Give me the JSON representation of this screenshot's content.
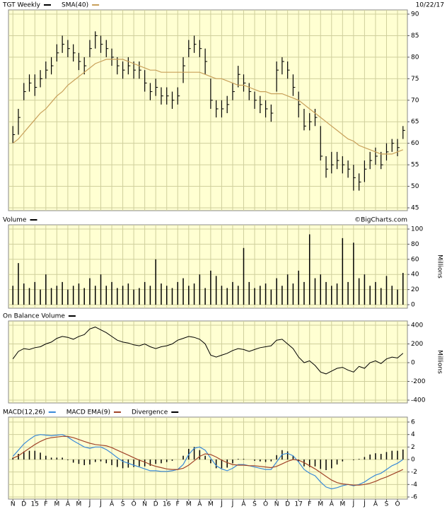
{
  "chart_data": [
    {
      "type": "ohlc",
      "title": "TGT Weekly",
      "color": "#000000",
      "date": "10/22/17",
      "x": [
        0,
        0.5,
        1,
        1.5,
        2,
        2.5,
        3,
        3.5,
        4,
        4.5,
        5,
        5.5,
        6,
        6.5,
        7,
        7.5,
        8,
        8.5,
        9,
        9.5,
        10,
        10.5,
        11,
        11.5,
        12,
        12.5,
        13,
        13.5,
        14,
        14.5,
        15,
        15.5,
        16,
        16.5,
        17,
        17.5,
        18,
        18.5,
        19,
        19.5,
        20,
        20.5,
        21,
        21.5,
        22,
        22.5,
        23,
        23.5,
        24,
        24.5,
        25,
        25.5,
        26,
        26.5,
        27,
        27.5,
        28,
        28.5,
        29,
        29.5,
        30,
        30.5,
        31,
        31.5,
        32,
        32.5,
        33,
        33.5,
        34,
        34.5,
        35,
        35.5
      ],
      "xlim": [
        -0.4,
        35.9
      ],
      "high": [
        64,
        68,
        74,
        76,
        76,
        77,
        79,
        80,
        83,
        85,
        84,
        83,
        81,
        80,
        84,
        86,
        85,
        84,
        82,
        80,
        79,
        80,
        79,
        79,
        77,
        74,
        75,
        73,
        73,
        72,
        73,
        80,
        84,
        85,
        84,
        82,
        75,
        70,
        70,
        71,
        74,
        78,
        76,
        74,
        72,
        71,
        70,
        69,
        79,
        80,
        79,
        76,
        72,
        68,
        67,
        68,
        64,
        57,
        58,
        58,
        57,
        56,
        55,
        53,
        56,
        58,
        59,
        58,
        60,
        61,
        61,
        64
      ],
      "low": [
        60,
        62,
        70,
        72,
        71,
        73,
        75,
        76,
        79,
        81,
        80,
        79,
        77,
        76,
        80,
        82,
        81,
        80,
        78,
        76,
        75,
        76,
        75,
        75,
        72,
        70,
        71,
        69,
        69,
        68,
        69,
        74,
        80,
        81,
        80,
        76,
        68,
        66,
        66,
        67,
        70,
        73,
        72,
        70,
        68,
        67,
        66,
        65,
        72,
        76,
        75,
        71,
        66,
        63,
        63,
        64,
        56,
        52,
        53,
        54,
        53,
        52,
        49,
        49,
        51,
        54,
        55,
        54,
        56,
        58,
        57,
        61
      ],
      "close": [
        62,
        66,
        72,
        74,
        73,
        75,
        77,
        78,
        81,
        83,
        82,
        81,
        79,
        78,
        82,
        85,
        83,
        82,
        80,
        78,
        77,
        78,
        77,
        77,
        74,
        72,
        73,
        71,
        71,
        70,
        71,
        78,
        82,
        83,
        82,
        79,
        70,
        68,
        68,
        69,
        72,
        76,
        74,
        72,
        70,
        69,
        68,
        67,
        77,
        79,
        77,
        73,
        69,
        64,
        65,
        66,
        57,
        54,
        55,
        56,
        55,
        54,
        52,
        51,
        54,
        56,
        57,
        55,
        58,
        60,
        59,
        63
      ],
      "series": [
        {
          "name": "SMA(40)",
          "color": "#c8a05a",
          "values": [
            60,
            61,
            62.5,
            64,
            65.5,
            67,
            68,
            69.5,
            71,
            72,
            73.5,
            74.5,
            75.5,
            76.5,
            77.5,
            78.5,
            79,
            79.5,
            79.5,
            79.5,
            79.5,
            79,
            78.5,
            78,
            77.5,
            77,
            77,
            76.5,
            76.5,
            76.5,
            76.5,
            76.5,
            76.5,
            76.5,
            76.5,
            76,
            75.5,
            75,
            75,
            74.5,
            74,
            73.5,
            73.5,
            73,
            72.5,
            72,
            72,
            71.5,
            71.5,
            71.5,
            71,
            70.5,
            70,
            69,
            68,
            67,
            66,
            65,
            64,
            63,
            62,
            61,
            60.5,
            59.5,
            59,
            58.5,
            58,
            57.5,
            57.5,
            57.5,
            58,
            58.5
          ]
        }
      ],
      "ylim": [
        45,
        90
      ],
      "yticks": [
        45,
        50,
        55,
        60,
        65,
        70,
        75,
        80,
        85,
        90
      ],
      "grid": true
    },
    {
      "type": "bar",
      "title": "Volume",
      "color": "#000000",
      "credit": "©BigCharts.com",
      "y_label": "Millions",
      "values": [
        25,
        55,
        28,
        22,
        30,
        20,
        40,
        22,
        25,
        30,
        20,
        25,
        28,
        22,
        35,
        25,
        40,
        25,
        30,
        22,
        25,
        28,
        20,
        22,
        30,
        25,
        60,
        28,
        25,
        22,
        30,
        35,
        25,
        28,
        40,
        22,
        45,
        38,
        25,
        22,
        30,
        25,
        75,
        30,
        22,
        25,
        28,
        20,
        35,
        25,
        40,
        28,
        45,
        30,
        93,
        35,
        40,
        30,
        25,
        28,
        88,
        30,
        82,
        35,
        40,
        25,
        30,
        22,
        38,
        25,
        20,
        42
      ],
      "ylim": [
        0,
        100
      ],
      "yticks": [
        0,
        20,
        40,
        60,
        80,
        100
      ],
      "grid": true
    },
    {
      "type": "line",
      "title": "On Balance Volume",
      "color": "#000000",
      "y_label": "Millions",
      "values": [
        40,
        120,
        150,
        140,
        160,
        170,
        200,
        220,
        260,
        280,
        270,
        250,
        280,
        300,
        360,
        380,
        350,
        320,
        280,
        240,
        220,
        210,
        190,
        180,
        200,
        170,
        150,
        170,
        180,
        200,
        240,
        260,
        280,
        270,
        250,
        200,
        80,
        60,
        80,
        100,
        130,
        150,
        140,
        120,
        140,
        160,
        170,
        180,
        240,
        250,
        200,
        150,
        60,
        0,
        20,
        -30,
        -100,
        -120,
        -90,
        -60,
        -50,
        -80,
        -100,
        -40,
        -60,
        0,
        20,
        -10,
        40,
        60,
        50,
        100
      ],
      "ylim": [
        -400,
        400
      ],
      "yticks": [
        -400,
        -200,
        0,
        200,
        400
      ],
      "grid": true
    },
    {
      "type": "macd",
      "series": [
        {
          "name": "MACD(12,26)",
          "color": "#3a8ad8",
          "style": "line",
          "values": [
            0.5,
            1.5,
            2.5,
            3.2,
            3.8,
            4,
            3.9,
            3.8,
            3.9,
            4,
            3.6,
            3,
            2.5,
            2,
            1.8,
            2,
            2,
            1.6,
            1,
            0.3,
            -0.3,
            -0.6,
            -0.9,
            -1.2,
            -1.5,
            -1.8,
            -1.8,
            -1.9,
            -1.9,
            -1.8,
            -1.6,
            -0.8,
            0.8,
            1.8,
            2,
            1.5,
            0.2,
            -1,
            -1.5,
            -1.8,
            -1.4,
            -0.8,
            -0.8,
            -1,
            -1.2,
            -1.4,
            -1.6,
            -1.6,
            -0.4,
            0.8,
            1,
            0.6,
            -0.4,
            -1.6,
            -2.2,
            -2.6,
            -3.6,
            -4.4,
            -4.7,
            -4.5,
            -4.2,
            -4,
            -4.2,
            -4,
            -3.6,
            -3,
            -2.5,
            -2.2,
            -1.6,
            -1,
            -0.6,
            0
          ]
        },
        {
          "name": "MACD EMA(9)",
          "color": "#a0442a",
          "style": "line",
          "values": [
            0.2,
            0.6,
            1.2,
            1.8,
            2.4,
            2.9,
            3.3,
            3.5,
            3.6,
            3.7,
            3.7,
            3.5,
            3.2,
            2.9,
            2.6,
            2.4,
            2.3,
            2.2,
            1.9,
            1.5,
            1.1,
            0.7,
            0.3,
            -0.1,
            -0.4,
            -0.8,
            -1.1,
            -1.3,
            -1.5,
            -1.6,
            -1.6,
            -1.4,
            -0.9,
            -0.2,
            0.5,
            0.9,
            0.8,
            0.4,
            -0.1,
            -0.5,
            -0.8,
            -0.9,
            -0.9,
            -1,
            -1,
            -1.1,
            -1.2,
            -1.3,
            -1.1,
            -0.7,
            -0.3,
            0,
            -0.1,
            -0.5,
            -1,
            -1.5,
            -2.1,
            -2.7,
            -3.3,
            -3.7,
            -3.9,
            -4,
            -4.1,
            -4.1,
            -4,
            -3.8,
            -3.5,
            -3.1,
            -2.8,
            -2.4,
            -2,
            -1.6
          ]
        },
        {
          "name": "Divergence",
          "color": "#000000",
          "style": "bar",
          "values": [
            0.3,
            0.9,
            1.3,
            1.4,
            1.4,
            1.1,
            0.6,
            0.3,
            0.3,
            0.3,
            -0.1,
            -0.5,
            -0.7,
            -0.9,
            -0.8,
            -0.4,
            -0.3,
            -0.6,
            -0.9,
            -1.2,
            -1.4,
            -1.3,
            -1.2,
            -1.1,
            -1.1,
            -1,
            -0.7,
            -0.6,
            -0.4,
            -0.2,
            0,
            0.6,
            1.7,
            2,
            1.5,
            0.6,
            -0.6,
            -1.4,
            -1.4,
            -1.3,
            -0.6,
            0.1,
            0.1,
            0,
            -0.2,
            -0.3,
            -0.4,
            -0.3,
            0.7,
            1.5,
            1.3,
            0.6,
            -0.3,
            -1.1,
            -1.2,
            -1.1,
            -1.5,
            -1.7,
            -1.4,
            -0.8,
            -0.3,
            0,
            -0.1,
            0.1,
            0.4,
            0.8,
            1,
            0.9,
            1.2,
            1.4,
            1.4,
            1.6
          ]
        }
      ],
      "ylim": [
        -6,
        6
      ],
      "yticks": [
        -6,
        -4,
        -2,
        0,
        2,
        4,
        6
      ],
      "grid": true,
      "xticks": [
        {
          "value": 0,
          "label": "N"
        },
        {
          "value": 1,
          "label": "D"
        },
        {
          "value": 2,
          "label": "15"
        },
        {
          "value": 3,
          "label": "F"
        },
        {
          "value": 4,
          "label": "M"
        },
        {
          "value": 5,
          "label": "A"
        },
        {
          "value": 6,
          "label": "M"
        },
        {
          "value": 7,
          "label": "J"
        },
        {
          "value": 8,
          "label": "J"
        },
        {
          "value": 9,
          "label": "A"
        },
        {
          "value": 10,
          "label": "S"
        },
        {
          "value": 11,
          "label": "O"
        },
        {
          "value": 12,
          "label": "N"
        },
        {
          "value": 13,
          "label": "D"
        },
        {
          "value": 14,
          "label": "16"
        },
        {
          "value": 15,
          "label": "F"
        },
        {
          "value": 16,
          "label": "M"
        },
        {
          "value": 17,
          "label": "A"
        },
        {
          "value": 18,
          "label": "M"
        },
        {
          "value": 19,
          "label": "J"
        },
        {
          "value": 20,
          "label": "J"
        },
        {
          "value": 21,
          "label": "A"
        },
        {
          "value": 22,
          "label": "S"
        },
        {
          "value": 23,
          "label": "O"
        },
        {
          "value": 24,
          "label": "N"
        },
        {
          "value": 25,
          "label": "D"
        },
        {
          "value": 26,
          "label": "17"
        },
        {
          "value": 27,
          "label": "F"
        },
        {
          "value": 28,
          "label": "M"
        },
        {
          "value": 29,
          "label": "A"
        },
        {
          "value": 30,
          "label": "M"
        },
        {
          "value": 31,
          "label": "J"
        },
        {
          "value": 32,
          "label": "J"
        },
        {
          "value": 33,
          "label": "A"
        },
        {
          "value": 34,
          "label": "S"
        },
        {
          "value": 35,
          "label": "O"
        }
      ]
    }
  ]
}
